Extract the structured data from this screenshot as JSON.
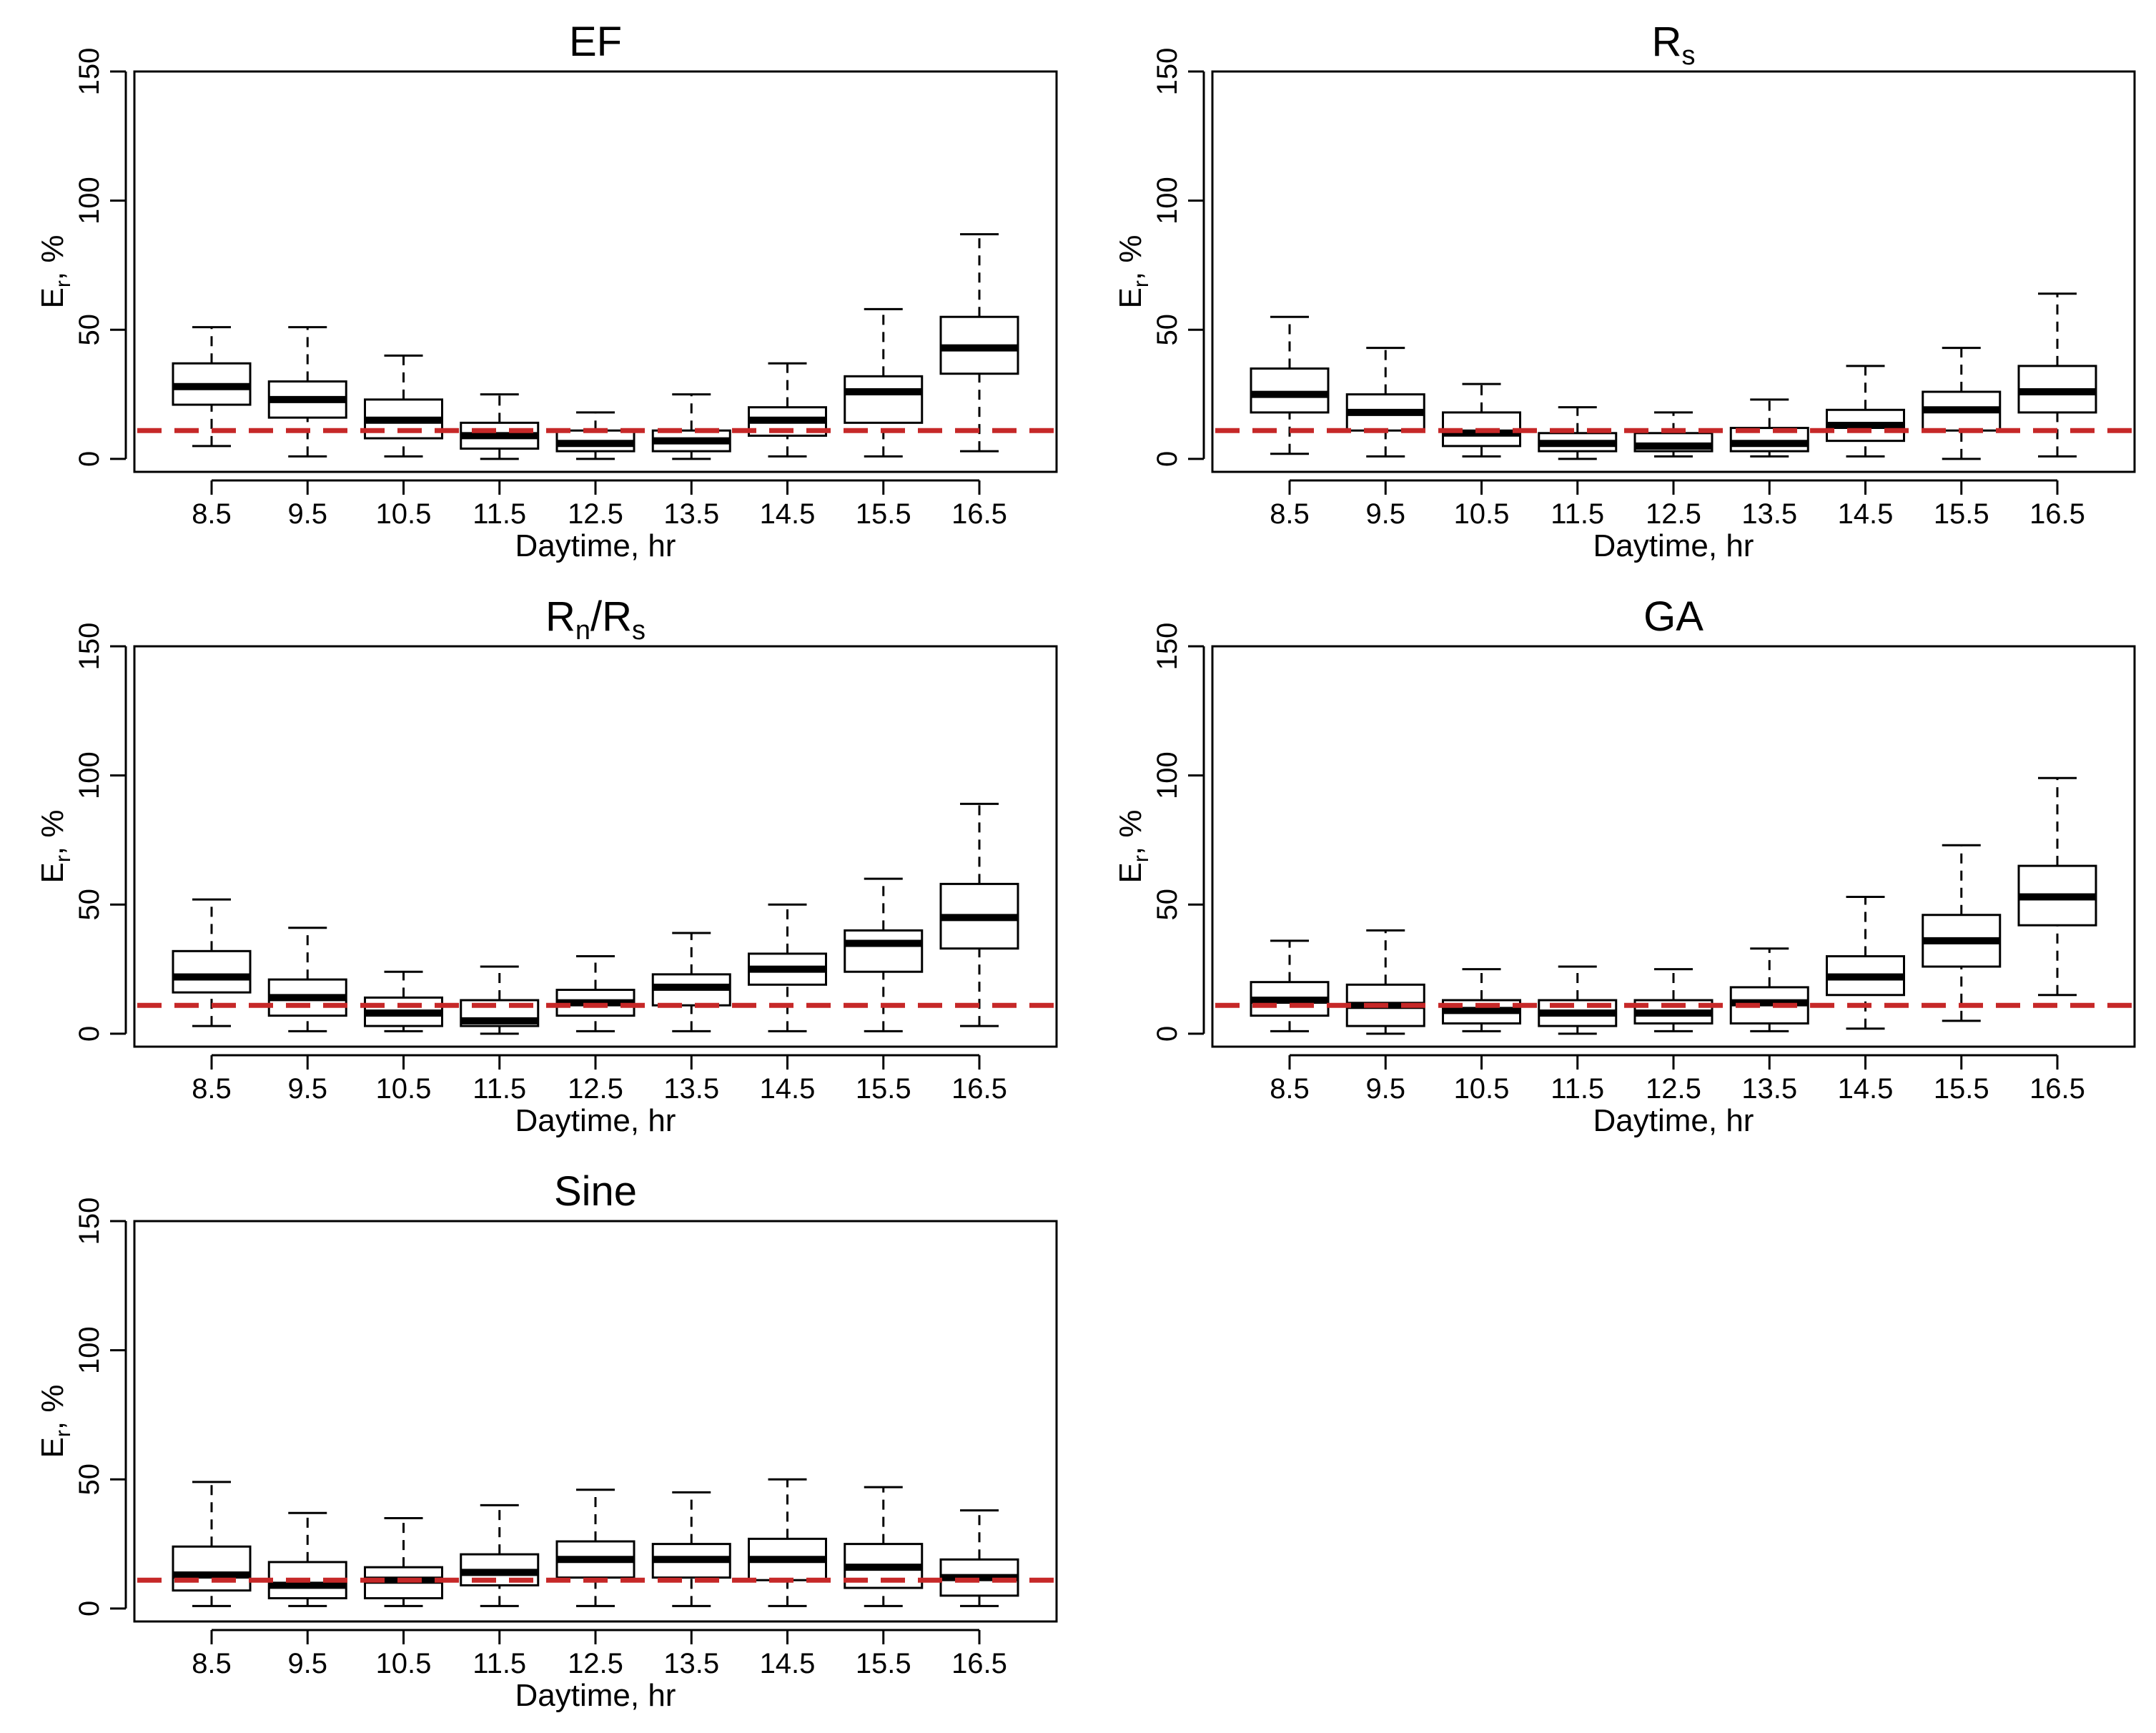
{
  "colors": {
    "box_stroke": "#000000",
    "median": "#000000",
    "reference_line": "#c62828",
    "background": "#ffffff"
  },
  "chart_data": [
    {
      "type": "boxplot",
      "title": "EF",
      "title_main": "EF",
      "title_sub": "",
      "title_rest": "",
      "xlabel": "Daytime, hr",
      "ylabel_main": "E",
      "ylabel_sub": "r",
      "ylabel_rest": ", %",
      "ylim": [
        -5,
        150
      ],
      "yticks": [
        "0",
        "50",
        "100",
        "150"
      ],
      "categories": [
        "8.5",
        "9.5",
        "10.5",
        "11.5",
        "12.5",
        "13.5",
        "14.5",
        "15.5",
        "16.5"
      ],
      "boxes": [
        {
          "min": 5,
          "q1": 21,
          "median": 28,
          "q3": 37,
          "max": 51
        },
        {
          "min": 1,
          "q1": 16,
          "median": 23,
          "q3": 30,
          "max": 51
        },
        {
          "min": 1,
          "q1": 8,
          "median": 15,
          "q3": 23,
          "max": 40
        },
        {
          "min": 0,
          "q1": 4,
          "median": 9,
          "q3": 14,
          "max": 25
        },
        {
          "min": 0,
          "q1": 3,
          "median": 6,
          "q3": 11,
          "max": 18
        },
        {
          "min": 0,
          "q1": 3,
          "median": 7,
          "q3": 11,
          "max": 25
        },
        {
          "min": 1,
          "q1": 9,
          "median": 15,
          "q3": 20,
          "max": 37
        },
        {
          "min": 1,
          "q1": 14,
          "median": 26,
          "q3": 32,
          "max": 58
        },
        {
          "min": 3,
          "q1": 33,
          "median": 43,
          "q3": 55,
          "max": 87
        }
      ],
      "reference_line": 11
    },
    {
      "type": "boxplot",
      "title": "Rs",
      "title_main": "R",
      "title_sub": "s",
      "title_rest": "",
      "xlabel": "Daytime, hr",
      "ylabel_main": "E",
      "ylabel_sub": "r",
      "ylabel_rest": ", %",
      "ylim": [
        -5,
        150
      ],
      "yticks": [
        "0",
        "50",
        "100",
        "150"
      ],
      "categories": [
        "8.5",
        "9.5",
        "10.5",
        "11.5",
        "12.5",
        "13.5",
        "14.5",
        "15.5",
        "16.5"
      ],
      "boxes": [
        {
          "min": 2,
          "q1": 18,
          "median": 25,
          "q3": 35,
          "max": 55
        },
        {
          "min": 1,
          "q1": 11,
          "median": 18,
          "q3": 25,
          "max": 43
        },
        {
          "min": 1,
          "q1": 5,
          "median": 10,
          "q3": 18,
          "max": 29
        },
        {
          "min": 0,
          "q1": 3,
          "median": 6,
          "q3": 10,
          "max": 20
        },
        {
          "min": 1,
          "q1": 3,
          "median": 5,
          "q3": 10,
          "max": 18
        },
        {
          "min": 1,
          "q1": 3,
          "median": 6,
          "q3": 12,
          "max": 23
        },
        {
          "min": 1,
          "q1": 7,
          "median": 13,
          "q3": 19,
          "max": 36
        },
        {
          "min": 0,
          "q1": 11,
          "median": 19,
          "q3": 26,
          "max": 43
        },
        {
          "min": 1,
          "q1": 18,
          "median": 26,
          "q3": 36,
          "max": 64
        }
      ],
      "reference_line": 11
    },
    {
      "type": "boxplot",
      "title": "Rn/Rs",
      "title_main": "R",
      "title_sub": "n",
      "title_rest": "/R",
      "title_sub2": "s",
      "xlabel": "Daytime, hr",
      "ylabel_main": "E",
      "ylabel_sub": "r",
      "ylabel_rest": ", %",
      "ylim": [
        -5,
        150
      ],
      "yticks": [
        "0",
        "50",
        "100",
        "150"
      ],
      "categories": [
        "8.5",
        "9.5",
        "10.5",
        "11.5",
        "12.5",
        "13.5",
        "14.5",
        "15.5",
        "16.5"
      ],
      "boxes": [
        {
          "min": 3,
          "q1": 16,
          "median": 22,
          "q3": 32,
          "max": 52
        },
        {
          "min": 1,
          "q1": 7,
          "median": 14,
          "q3": 21,
          "max": 41
        },
        {
          "min": 1,
          "q1": 3,
          "median": 8,
          "q3": 14,
          "max": 24
        },
        {
          "min": 0,
          "q1": 3,
          "median": 5,
          "q3": 13,
          "max": 26
        },
        {
          "min": 1,
          "q1": 7,
          "median": 12,
          "q3": 17,
          "max": 30
        },
        {
          "min": 1,
          "q1": 11,
          "median": 18,
          "q3": 23,
          "max": 39
        },
        {
          "min": 1,
          "q1": 19,
          "median": 25,
          "q3": 31,
          "max": 50
        },
        {
          "min": 1,
          "q1": 24,
          "median": 35,
          "q3": 40,
          "max": 60
        },
        {
          "min": 3,
          "q1": 33,
          "median": 45,
          "q3": 58,
          "max": 89
        }
      ],
      "reference_line": 11
    },
    {
      "type": "boxplot",
      "title": "GA",
      "title_main": "GA",
      "title_sub": "",
      "title_rest": "",
      "xlabel": "Daytime, hr",
      "ylabel_main": "E",
      "ylabel_sub": "r",
      "ylabel_rest": ", %",
      "ylim": [
        -5,
        150
      ],
      "yticks": [
        "0",
        "50",
        "100",
        "150"
      ],
      "categories": [
        "8.5",
        "9.5",
        "10.5",
        "11.5",
        "12.5",
        "13.5",
        "14.5",
        "15.5",
        "16.5"
      ],
      "boxes": [
        {
          "min": 1,
          "q1": 7,
          "median": 13,
          "q3": 20,
          "max": 36
        },
        {
          "min": 0,
          "q1": 3,
          "median": 11,
          "q3": 19,
          "max": 40
        },
        {
          "min": 1,
          "q1": 4,
          "median": 9,
          "q3": 13,
          "max": 25
        },
        {
          "min": 0,
          "q1": 3,
          "median": 8,
          "q3": 13,
          "max": 26
        },
        {
          "min": 1,
          "q1": 4,
          "median": 8,
          "q3": 13,
          "max": 25
        },
        {
          "min": 1,
          "q1": 4,
          "median": 12,
          "q3": 18,
          "max": 33
        },
        {
          "min": 2,
          "q1": 15,
          "median": 22,
          "q3": 30,
          "max": 53
        },
        {
          "min": 5,
          "q1": 26,
          "median": 36,
          "q3": 46,
          "max": 73
        },
        {
          "min": 15,
          "q1": 42,
          "median": 53,
          "q3": 65,
          "max": 99
        }
      ],
      "reference_line": 11
    },
    {
      "type": "boxplot",
      "title": "Sine",
      "title_main": "Sine",
      "title_sub": "",
      "title_rest": "",
      "xlabel": "Daytime, hr",
      "ylabel_main": "E",
      "ylabel_sub": "r",
      "ylabel_rest": ", %",
      "ylim": [
        -5,
        150
      ],
      "yticks": [
        "0",
        "50",
        "100",
        "150"
      ],
      "categories": [
        "8.5",
        "9.5",
        "10.5",
        "11.5",
        "12.5",
        "13.5",
        "14.5",
        "15.5",
        "16.5"
      ],
      "boxes": [
        {
          "min": 1,
          "q1": 7,
          "median": 13,
          "q3": 24,
          "max": 49
        },
        {
          "min": 1,
          "q1": 4,
          "median": 9,
          "q3": 18,
          "max": 37
        },
        {
          "min": 1,
          "q1": 4,
          "median": 11,
          "q3": 16,
          "max": 35
        },
        {
          "min": 1,
          "q1": 9,
          "median": 14,
          "q3": 21,
          "max": 40
        },
        {
          "min": 1,
          "q1": 12,
          "median": 19,
          "q3": 26,
          "max": 46
        },
        {
          "min": 1,
          "q1": 12,
          "median": 19,
          "q3": 25,
          "max": 45
        },
        {
          "min": 1,
          "q1": 11,
          "median": 19,
          "q3": 27,
          "max": 50
        },
        {
          "min": 1,
          "q1": 8,
          "median": 16,
          "q3": 25,
          "max": 47
        },
        {
          "min": 1,
          "q1": 5,
          "median": 12,
          "q3": 19,
          "max": 38
        }
      ],
      "reference_line": 11
    }
  ]
}
